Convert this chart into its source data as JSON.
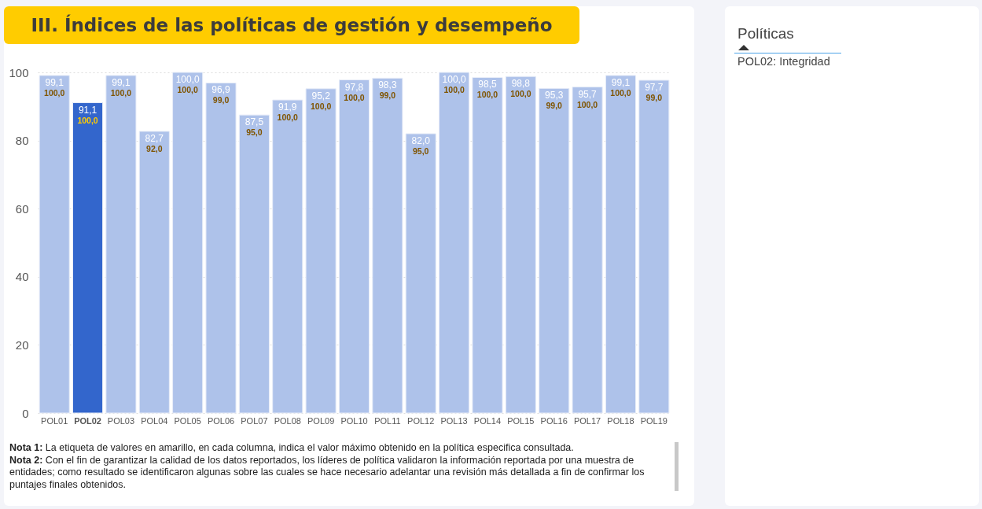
{
  "chart_data": [
    {
      "type": "bar",
      "title": "III. Índices de las políticas de gestión y desempeño",
      "categories": [
        "POL01",
        "POL02",
        "POL03",
        "POL04",
        "POL05",
        "POL06",
        "POL07",
        "POL08",
        "POL09",
        "POL10",
        "POL11",
        "POL12",
        "POL13",
        "POL14",
        "POL15",
        "POL16",
        "POL17",
        "POL18",
        "POL19"
      ],
      "values": [
        99.1,
        91.1,
        99.1,
        82.7,
        100.0,
        96.9,
        87.5,
        91.9,
        95.2,
        97.8,
        98.3,
        82.0,
        100.0,
        98.5,
        98.8,
        95.3,
        95.7,
        99.1,
        97.7
      ],
      "value_labels": [
        "99,1",
        "91,1",
        "99,1",
        "82,7",
        "100,0",
        "96,9",
        "87,5",
        "91,9",
        "95,2",
        "97,8",
        "98,3",
        "82,0",
        "100,0",
        "98,5",
        "98,8",
        "95,3",
        "95,7",
        "99,1",
        "97,7"
      ],
      "colors": [
        "#aec2ea",
        "#3366cc",
        "#aec2ea",
        "#aec2ea",
        "#aec2ea",
        "#aec2ea",
        "#aec2ea",
        "#aec2ea",
        "#aec2ea",
        "#aec2ea",
        "#aec2ea",
        "#aec2ea",
        "#aec2ea",
        "#aec2ea",
        "#aec2ea",
        "#aec2ea",
        "#aec2ea",
        "#aec2ea",
        "#aec2ea"
      ],
      "ylim": [
        0,
        100
      ],
      "yticks": [
        0,
        20,
        40,
        60,
        80,
        100
      ],
      "grid": "y",
      "annotations": [
        {
          "text": "100,0",
          "x": "POL01",
          "y": 99.1
        },
        {
          "text": "100,0",
          "x": "POL02",
          "y": 91.1
        },
        {
          "text": "100,0",
          "x": "POL03",
          "y": 99.1
        },
        {
          "text": "92,0",
          "x": "POL04",
          "y": 82.7
        },
        {
          "text": "100,0",
          "x": "POL05",
          "y": 100.0
        },
        {
          "text": "99,0",
          "x": "POL06",
          "y": 96.9
        },
        {
          "text": "95,0",
          "x": "POL07",
          "y": 87.5
        },
        {
          "text": "100,0",
          "x": "POL08",
          "y": 91.9
        },
        {
          "text": "100,0",
          "x": "POL09",
          "y": 95.2
        },
        {
          "text": "100,0",
          "x": "POL10",
          "y": 97.8
        },
        {
          "text": "99,0",
          "x": "POL11",
          "y": 98.3
        },
        {
          "text": "95,0",
          "x": "POL12",
          "y": 82.0
        },
        {
          "text": "100,0",
          "x": "POL13",
          "y": 100.0
        },
        {
          "text": "100,0",
          "x": "POL14",
          "y": 98.5
        },
        {
          "text": "100,0",
          "x": "POL15",
          "y": 98.8
        },
        {
          "text": "99,0",
          "x": "POL16",
          "y": 95.3
        },
        {
          "text": "100,0",
          "x": "POL17",
          "y": 95.7
        },
        {
          "text": "100,0",
          "x": "POL18",
          "y": 99.1
        },
        {
          "text": "99,0",
          "x": "POL19",
          "y": 97.7
        },
        "Nota 1: La etiqueta de valores en amarillo, en cada columna, indica el valor máximo obtenido en la política especifica consultada.",
        "Nota 2: Con el fin de garantizar la calidad de los datos reportados, los líderes de política validaron la información reportada por una muestra de entidades; como resultado se identificaron algunas sobre las cuales se hace necesario adelantar una revisión más detallada a fin de confirmar los puntajes finales obtenidos."
      ]
    },
    {
      "type": "other",
      "title": "Políticas",
      "annotations": [
        "POL02: Integridad"
      ]
    }
  ]
}
